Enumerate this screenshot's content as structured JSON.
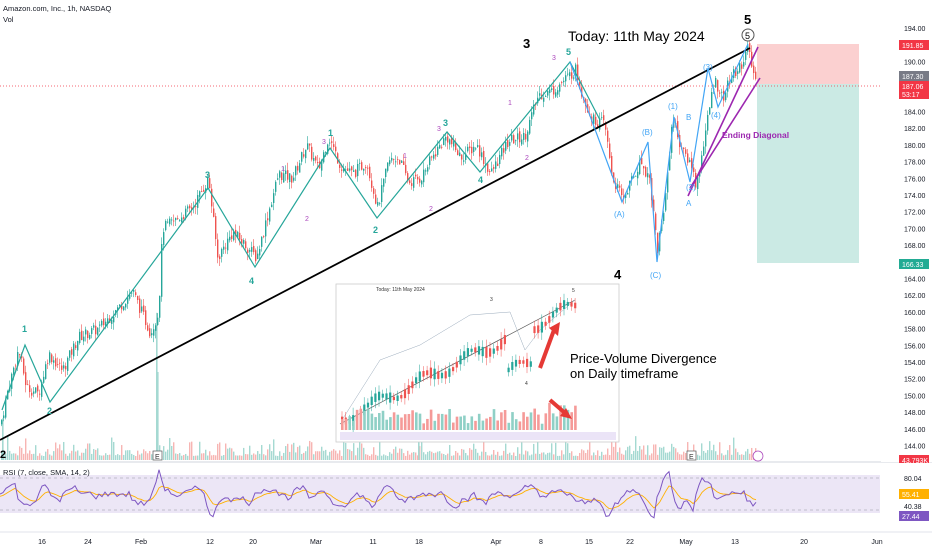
{
  "header": {
    "symbol": "Amazon.com, Inc., 1h, NASDAQ",
    "volume_label": "Vol",
    "rsi_label": "RSI (7, close, SMA, 14, 2)"
  },
  "annotations": {
    "today": "Today: 11th May 2024",
    "ending_diagonal": "Ending Diagonal",
    "divergence_line1": "Price-Volume Divergence",
    "divergence_line2": "on Daily timeframe",
    "inset_title": "Today: 11th May 2024"
  },
  "price_axis": {
    "ticks": [
      "194.00",
      "192.00",
      "190.00",
      "188.00",
      "186.00",
      "184.00",
      "182.00",
      "180.00",
      "178.00",
      "176.00",
      "174.00",
      "172.00",
      "170.00",
      "168.00",
      "166.00",
      "164.00",
      "162.00",
      "160.00",
      "158.00",
      "156.00",
      "154.00",
      "152.00",
      "150.00",
      "148.00",
      "146.00",
      "144.00"
    ],
    "badges": [
      {
        "text": "191.85",
        "color": "#f23645"
      },
      {
        "text": "187.30",
        "color": "#787b86"
      },
      {
        "text": "187.06",
        "color": "#f23645"
      },
      {
        "text": "53:17",
        "color": "#f23645"
      },
      {
        "text": "166.33",
        "color": "#22ab94"
      },
      {
        "text": "43.793K",
        "color": "#f23645"
      }
    ]
  },
  "rsi_axis": {
    "ticks": [
      "80.04",
      "40.38"
    ],
    "badges": [
      {
        "text": "55.41",
        "color": "#ffb000"
      },
      {
        "text": "27.44",
        "color": "#7e57c2"
      }
    ]
  },
  "time_axis": {
    "labels": [
      "16",
      "24",
      "Feb",
      "12",
      "20",
      "Mar",
      "11",
      "18",
      "Apr",
      "8",
      "15",
      "22",
      "May",
      "13",
      "20",
      "Jun"
    ]
  },
  "wave_labels": {
    "green": [
      "1",
      "2",
      "3",
      "4",
      "1",
      "2",
      "3",
      "4",
      "1",
      "2",
      "3",
      "4",
      "5"
    ],
    "purple": [
      "1",
      "2",
      "3",
      "4",
      "1",
      "2",
      "3",
      "4",
      "5"
    ],
    "blue": [
      "(A)",
      "(B)",
      "(C)",
      "(1)",
      "(2)",
      "(3)",
      "(4)",
      "(5)",
      "A",
      "B",
      "C"
    ],
    "black": [
      "3",
      "4",
      "5",
      "2"
    ],
    "circled": "5"
  },
  "colors": {
    "up": "#26a69a",
    "down": "#ef5350",
    "wave_green": "#26a69a",
    "wave_purple": "#9c27b0",
    "wave_blue": "#42a5f5",
    "rsi": "#7e57c2",
    "rsi_ma": "#ffb000"
  },
  "chart_data": {
    "type": "candlestick",
    "title": "Amazon.com, Inc., 1h, NASDAQ",
    "ylim": [
      144,
      195
    ],
    "trade_zone": {
      "target": 191.85,
      "entry": 187.06,
      "stop": 166.33
    },
    "rsi_range": [
      0,
      100
    ],
    "rsi_levels": [
      80.04,
      55.41,
      40.38,
      27.44
    ],
    "price_path": [
      [
        0,
        146.5
      ],
      [
        8,
        151
      ],
      [
        18,
        155.5
      ],
      [
        26,
        151
      ],
      [
        38,
        150.2
      ],
      [
        48,
        155
      ],
      [
        62,
        153
      ],
      [
        78,
        157
      ],
      [
        98,
        158
      ],
      [
        118,
        160.5
      ],
      [
        132,
        162.5
      ],
      [
        150,
        157.5
      ],
      [
        158,
        160
      ],
      [
        162,
        170
      ],
      [
        175,
        171
      ],
      [
        192,
        172.5
      ],
      [
        208,
        176
      ],
      [
        217,
        166.5
      ],
      [
        232,
        169.5
      ],
      [
        245,
        168
      ],
      [
        256,
        166.5
      ],
      [
        268,
        172
      ],
      [
        278,
        176.5
      ],
      [
        292,
        176
      ],
      [
        306,
        180
      ],
      [
        318,
        177
      ],
      [
        328,
        181
      ],
      [
        340,
        177.5
      ],
      [
        352,
        176.5
      ],
      [
        366,
        178
      ],
      [
        377,
        172.5
      ],
      [
        388,
        178
      ],
      [
        398,
        178.5
      ],
      [
        408,
        175.5
      ],
      [
        420,
        176
      ],
      [
        434,
        179
      ],
      [
        446,
        181
      ],
      [
        460,
        178.5
      ],
      [
        476,
        180
      ],
      [
        490,
        176.5
      ],
      [
        508,
        180.5
      ],
      [
        524,
        181
      ],
      [
        538,
        186
      ],
      [
        552,
        186.5
      ],
      [
        566,
        188
      ],
      [
        575,
        189
      ],
      [
        582,
        186
      ],
      [
        592,
        183
      ],
      [
        604,
        182.5
      ],
      [
        612,
        176
      ],
      [
        622,
        173.5
      ],
      [
        640,
        178
      ],
      [
        649,
        176
      ],
      [
        657,
        167.5
      ],
      [
        665,
        174
      ],
      [
        672,
        183.5
      ],
      [
        682,
        179
      ],
      [
        690,
        178
      ],
      [
        696,
        175
      ],
      [
        704,
        181
      ],
      [
        714,
        188
      ],
      [
        722,
        185.5
      ],
      [
        730,
        188
      ],
      [
        740,
        189.5
      ],
      [
        747,
        191.5
      ],
      [
        752,
        189
      ],
      [
        756,
        187.3
      ]
    ],
    "volume_spikes": [
      [
        2,
        0.26
      ],
      [
        156,
        0.92
      ],
      [
        157,
        0.55
      ],
      [
        418,
        0.3
      ]
    ]
  }
}
